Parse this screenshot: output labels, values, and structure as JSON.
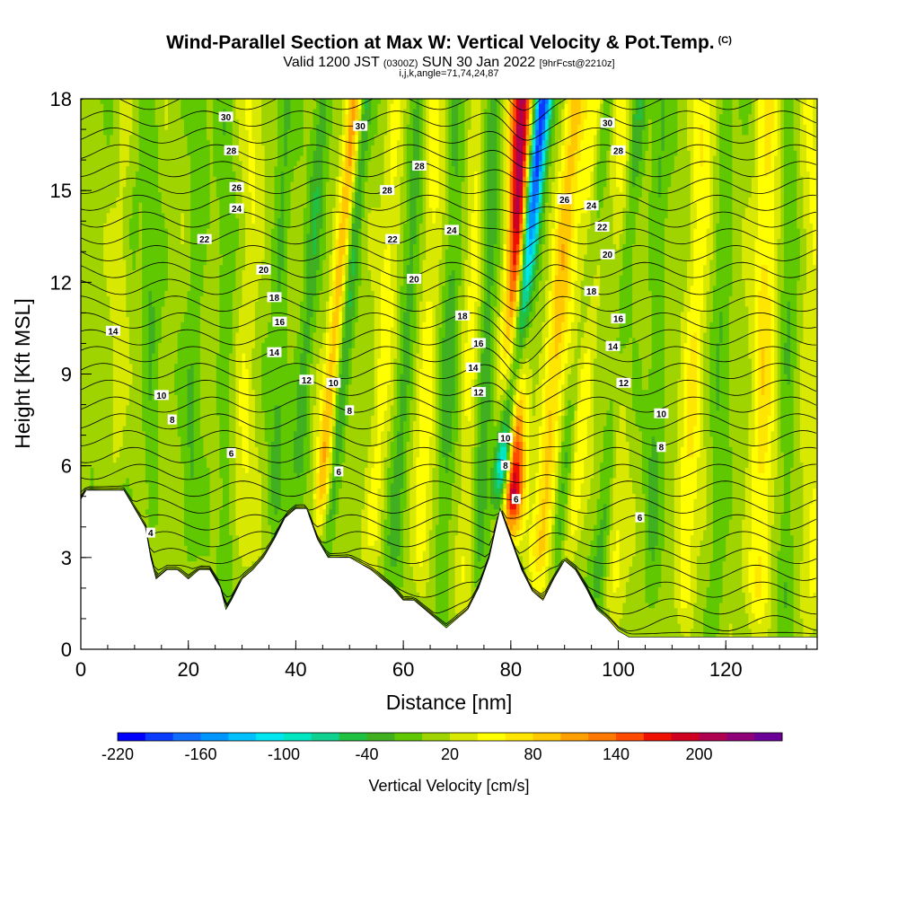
{
  "title": {
    "main": "Wind-Parallel Section at Max W: Vertical Velocity & Pot.Temp.",
    "copyright": "(C)",
    "valid_prefix": "Valid 1200 JST",
    "valid_utc": "(0300Z)",
    "valid_date": "SUN 30 Jan 2022",
    "forecast": "[9hrFcst@2210z]",
    "indices": "i,j,k,angle=71,74,24,87"
  },
  "chart_data": {
    "type": "heatmap",
    "xlabel": "Distance [nm]",
    "ylabel": "Height [Kft MSL]",
    "xlim": [
      0,
      137
    ],
    "ylim": [
      0,
      18
    ],
    "x_ticks": [
      "0",
      "20",
      "40",
      "60",
      "80",
      "100",
      "120"
    ],
    "y_ticks": [
      "0",
      "3",
      "6",
      "9",
      "12",
      "15",
      "18"
    ],
    "colorbar": {
      "label": "Vertical Velocity [cm/s]",
      "tick_labels": [
        "-220",
        "-160",
        "-100",
        "-40",
        "20",
        "80",
        "140",
        "200"
      ],
      "levels": [
        -220,
        -200,
        -180,
        -160,
        -140,
        -120,
        -100,
        -80,
        -60,
        -40,
        -20,
        0,
        20,
        40,
        60,
        80,
        100,
        120,
        140,
        160,
        180,
        200,
        220,
        240
      ],
      "colors": [
        "#0000ff",
        "#0a3cff",
        "#0f6eff",
        "#0096ff",
        "#00c0ff",
        "#00e6f0",
        "#00e6c0",
        "#10d090",
        "#20c040",
        "#40b020",
        "#60c800",
        "#a0d400",
        "#d8e800",
        "#ffff00",
        "#ffe600",
        "#ffc800",
        "#ffa000",
        "#ff7800",
        "#ff4a00",
        "#ee1000",
        "#d00020",
        "#b00050",
        "#900078",
        "#6a0098"
      ]
    },
    "terrain_kft": [
      [
        0,
        4.9
      ],
      [
        1,
        5.2
      ],
      [
        8,
        5.2
      ],
      [
        10,
        4.6
      ],
      [
        12,
        4.0
      ],
      [
        13,
        3.0
      ],
      [
        14,
        2.3
      ],
      [
        16,
        2.6
      ],
      [
        18,
        2.6
      ],
      [
        20,
        2.3
      ],
      [
        22,
        2.6
      ],
      [
        24,
        2.6
      ],
      [
        26,
        2.0
      ],
      [
        27,
        1.3
      ],
      [
        28,
        1.6
      ],
      [
        30,
        2.3
      ],
      [
        32,
        2.6
      ],
      [
        34,
        3.0
      ],
      [
        36,
        3.6
      ],
      [
        38,
        4.3
      ],
      [
        40,
        4.6
      ],
      [
        42,
        4.6
      ],
      [
        44,
        3.6
      ],
      [
        46,
        3.0
      ],
      [
        50,
        3.0
      ],
      [
        54,
        2.6
      ],
      [
        56,
        2.3
      ],
      [
        58,
        2.0
      ],
      [
        60,
        1.6
      ],
      [
        62,
        1.6
      ],
      [
        64,
        1.3
      ],
      [
        66,
        1.0
      ],
      [
        68,
        0.7
      ],
      [
        70,
        1.0
      ],
      [
        72,
        1.3
      ],
      [
        74,
        2.0
      ],
      [
        76,
        3.0
      ],
      [
        78,
        4.6
      ],
      [
        80,
        3.6
      ],
      [
        82,
        2.6
      ],
      [
        84,
        1.9
      ],
      [
        86,
        1.6
      ],
      [
        88,
        2.3
      ],
      [
        90,
        2.9
      ],
      [
        92,
        2.6
      ],
      [
        94,
        2.0
      ],
      [
        96,
        1.3
      ],
      [
        98,
        1.0
      ],
      [
        100,
        0.6
      ],
      [
        102,
        0.4
      ],
      [
        137,
        0.4
      ]
    ],
    "updraft_columns": [
      {
        "x0": 80,
        "x1": 82,
        "h": 18,
        "w": 210,
        "width": 2.0
      },
      {
        "x0": 85,
        "x1": 92,
        "h": 18,
        "w": 80,
        "width": 2.0
      },
      {
        "x0": 91,
        "x1": 96,
        "h": 18,
        "w": 60,
        "width": 2.2
      },
      {
        "x0": 44,
        "x1": 51,
        "h": 18,
        "w": 90,
        "width": 1.4
      },
      {
        "x0": 54,
        "x1": 59,
        "h": 18,
        "w": 40,
        "width": 1.8
      },
      {
        "x0": 99,
        "x1": 101,
        "h": 18,
        "w": 40,
        "width": 2.0
      },
      {
        "x0": 112,
        "x1": 116,
        "h": 18,
        "w": 50,
        "width": 2.0
      },
      {
        "x0": 126,
        "x1": 128,
        "h": 18,
        "w": 60,
        "width": 2.2
      },
      {
        "x0": 7,
        "x1": 9,
        "h": 18,
        "w": 30,
        "width": 2.0
      },
      {
        "x0": 30,
        "x1": 32,
        "h": 18,
        "w": 30,
        "width": 2.0
      },
      {
        "x0": 63,
        "x1": 66,
        "h": 18,
        "w": 40,
        "width": 1.8
      },
      {
        "x0": 71,
        "x1": 74,
        "h": 18,
        "w": 35,
        "width": 1.5
      },
      {
        "x0": 136,
        "x1": 136,
        "h": 18,
        "w": 30,
        "width": 2.0
      }
    ],
    "downdraft_columns": [
      {
        "x0": 78,
        "x1": 86,
        "h": 18,
        "w": -220,
        "width": 1.6
      },
      {
        "x0": 46,
        "x1": 53,
        "h": 18,
        "w": -50,
        "width": 1.2
      },
      {
        "x0": 40,
        "x1": 45,
        "h": 18,
        "w": -40,
        "width": 1.4
      },
      {
        "x0": 88,
        "x1": 98,
        "h": 18,
        "w": -60,
        "width": 1.5
      },
      {
        "x0": 96,
        "x1": 104,
        "h": 18,
        "w": -50,
        "width": 1.6
      },
      {
        "x0": 58,
        "x1": 63,
        "h": 18,
        "w": -35,
        "width": 1.5
      },
      {
        "x0": 67,
        "x1": 70,
        "h": 18,
        "w": -35,
        "width": 1.5
      },
      {
        "x0": 74,
        "x1": 77,
        "h": 18,
        "w": -40,
        "width": 1.4
      },
      {
        "x0": 8,
        "x1": 10,
        "h": 18,
        "w": -20,
        "width": 1.5
      },
      {
        "x0": 13,
        "x1": 13,
        "h": 18,
        "w": -25,
        "width": 1.5
      },
      {
        "x0": 20,
        "x1": 22,
        "h": 18,
        "w": -25,
        "width": 1.5
      },
      {
        "x0": 27,
        "x1": 27,
        "h": 18,
        "w": -20,
        "width": 1.5
      },
      {
        "x0": 36,
        "x1": 38,
        "h": 18,
        "w": -30,
        "width": 1.5
      },
      {
        "x0": 106,
        "x1": 108,
        "h": 18,
        "w": -25,
        "width": 1.5
      },
      {
        "x0": 118,
        "x1": 120,
        "h": 18,
        "w": -25,
        "width": 1.5
      },
      {
        "x0": 131,
        "x1": 132,
        "h": 18,
        "w": -25,
        "width": 1.5
      }
    ],
    "theta_contour_labels": [
      {
        "text": "30",
        "x": 27,
        "y": 17.4
      },
      {
        "text": "28",
        "x": 28,
        "y": 16.3
      },
      {
        "text": "26",
        "x": 29,
        "y": 15.1
      },
      {
        "text": "24",
        "x": 29,
        "y": 14.4
      },
      {
        "text": "22",
        "x": 23,
        "y": 13.4
      },
      {
        "text": "20",
        "x": 34,
        "y": 12.4
      },
      {
        "text": "18",
        "x": 36,
        "y": 11.5
      },
      {
        "text": "16",
        "x": 37,
        "y": 10.7
      },
      {
        "text": "14",
        "x": 36,
        "y": 9.7
      },
      {
        "text": "14",
        "x": 6,
        "y": 10.4
      },
      {
        "text": "12",
        "x": 42,
        "y": 8.8
      },
      {
        "text": "10",
        "x": 47,
        "y": 8.7
      },
      {
        "text": "10",
        "x": 15,
        "y": 8.3
      },
      {
        "text": "8",
        "x": 17,
        "y": 7.5
      },
      {
        "text": "8",
        "x": 50,
        "y": 7.8
      },
      {
        "text": "6",
        "x": 28,
        "y": 6.4
      },
      {
        "text": "6",
        "x": 48,
        "y": 5.8
      },
      {
        "text": "4",
        "x": 13,
        "y": 3.8
      },
      {
        "text": "30",
        "x": 52,
        "y": 17.1
      },
      {
        "text": "28",
        "x": 63,
        "y": 15.8
      },
      {
        "text": "28",
        "x": 57,
        "y": 15.0
      },
      {
        "text": "22",
        "x": 58,
        "y": 13.4
      },
      {
        "text": "24",
        "x": 69,
        "y": 13.7
      },
      {
        "text": "20",
        "x": 62,
        "y": 12.1
      },
      {
        "text": "18",
        "x": 71,
        "y": 10.9
      },
      {
        "text": "16",
        "x": 74,
        "y": 10.0
      },
      {
        "text": "14",
        "x": 73,
        "y": 9.2
      },
      {
        "text": "12",
        "x": 74,
        "y": 8.4
      },
      {
        "text": "10",
        "x": 79,
        "y": 6.9
      },
      {
        "text": "8",
        "x": 79,
        "y": 6.0
      },
      {
        "text": "6",
        "x": 81,
        "y": 4.9
      },
      {
        "text": "30",
        "x": 98,
        "y": 17.2
      },
      {
        "text": "28",
        "x": 100,
        "y": 16.3
      },
      {
        "text": "26",
        "x": 90,
        "y": 14.7
      },
      {
        "text": "24",
        "x": 95,
        "y": 14.5
      },
      {
        "text": "22",
        "x": 97,
        "y": 13.8
      },
      {
        "text": "20",
        "x": 98,
        "y": 12.9
      },
      {
        "text": "18",
        "x": 95,
        "y": 11.7
      },
      {
        "text": "16",
        "x": 100,
        "y": 10.8
      },
      {
        "text": "14",
        "x": 99,
        "y": 9.9
      },
      {
        "text": "12",
        "x": 101,
        "y": 8.7
      },
      {
        "text": "10",
        "x": 108,
        "y": 7.7
      },
      {
        "text": "8",
        "x": 108,
        "y": 6.6
      },
      {
        "text": "6",
        "x": 104,
        "y": 4.3
      }
    ]
  }
}
